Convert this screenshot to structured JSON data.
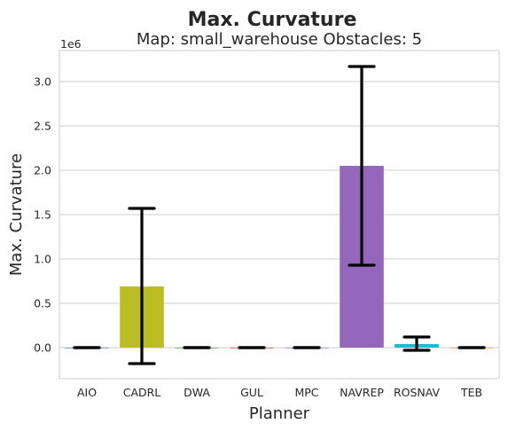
{
  "chart_data": {
    "type": "bar",
    "title": "Max. Curvature",
    "subtitle": "Map: small_warehouse Obstacles: 5",
    "xlabel": "Planner",
    "ylabel": "Max. Curvature",
    "y_offset_label": "1e6",
    "ylim": [
      -0.35,
      3.35
    ],
    "yticks": [
      0.0,
      0.5,
      1.0,
      1.5,
      2.0,
      2.5,
      3.0
    ],
    "ytick_labels": [
      "0.0",
      "0.5",
      "1.0",
      "1.5",
      "2.0",
      "2.5",
      "3.0"
    ],
    "grid": true,
    "categories": [
      "AIO",
      "CADRL",
      "DWA",
      "GUL",
      "MPC",
      "NAVREP",
      "ROSNAV",
      "TEB"
    ],
    "values": [
      0.0,
      0.69,
      0.0,
      0.0,
      0.0,
      2.05,
      0.04,
      0.0
    ],
    "error_low": [
      0.0,
      -0.18,
      0.0,
      0.0,
      0.0,
      0.93,
      -0.03,
      0.0
    ],
    "error_high": [
      0.0,
      1.57,
      0.0,
      0.0,
      0.0,
      3.17,
      0.12,
      0.0
    ],
    "colors": [
      "#1f77b4",
      "#bcbd22",
      "#2ca02c",
      "#d62728",
      "#9467bd",
      "#9467bd",
      "#17becf",
      "#ff7f0e"
    ]
  }
}
